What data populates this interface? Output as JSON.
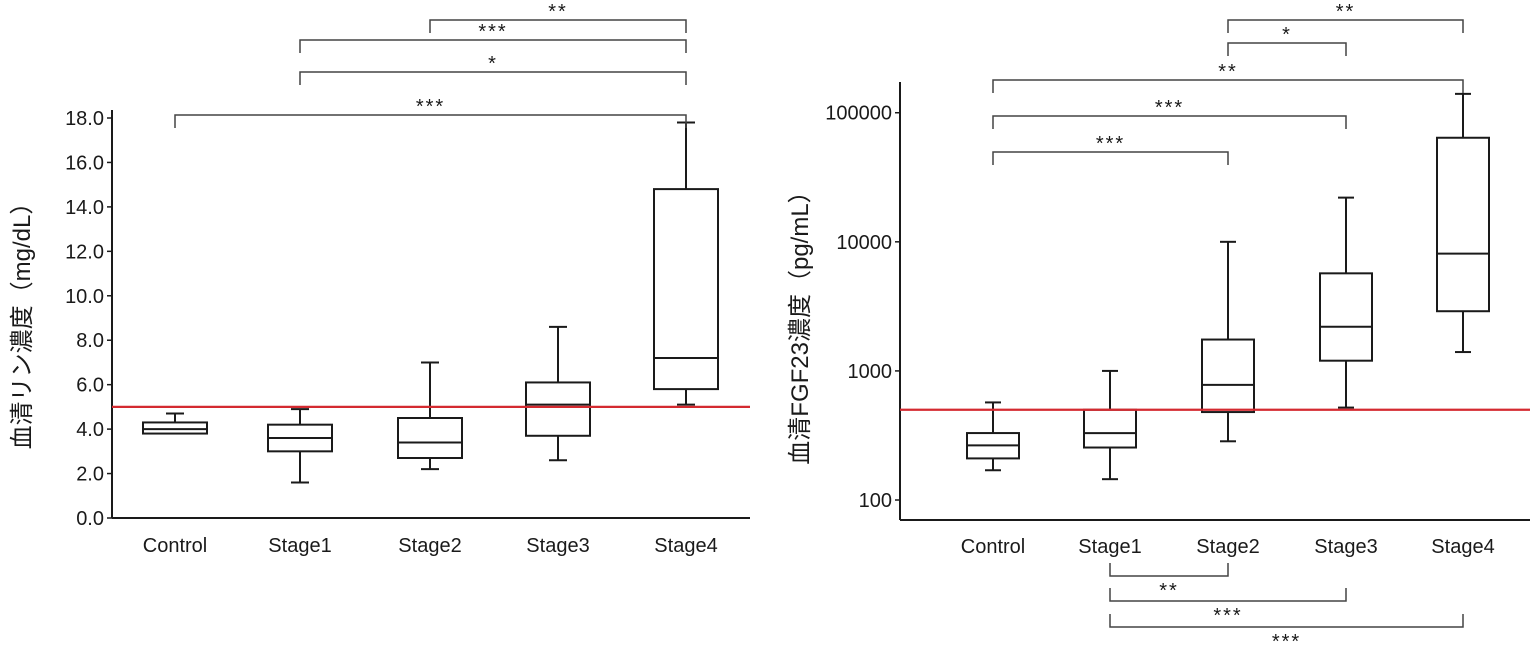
{
  "chart_data": [
    {
      "type": "box",
      "title": "",
      "ylabel": "血清リン濃度（mg/dL）",
      "ylim": [
        0,
        18
      ],
      "yscale": "linear",
      "yticks": [
        {
          "value": 0,
          "label": "0.0"
        },
        {
          "value": 2,
          "label": "2.0"
        },
        {
          "value": 4,
          "label": "4.0"
        },
        {
          "value": 6,
          "label": "6.0"
        },
        {
          "value": 8,
          "label": "8.0"
        },
        {
          "value": 10,
          "label": "10.0"
        },
        {
          "value": 12,
          "label": "12.0"
        },
        {
          "value": 14,
          "label": "14.0"
        },
        {
          "value": 16,
          "label": "16.0"
        },
        {
          "value": 18,
          "label": "18.0"
        }
      ],
      "categories": [
        "Control",
        "Stage1",
        "Stage2",
        "Stage3",
        "Stage4"
      ],
      "boxes": [
        {
          "min": 3.8,
          "q1": 3.8,
          "median": 4.0,
          "q3": 4.3,
          "max": 4.7
        },
        {
          "min": 1.6,
          "q1": 3.0,
          "median": 3.6,
          "q3": 4.2,
          "max": 4.9
        },
        {
          "min": 2.2,
          "q1": 2.7,
          "median": 3.4,
          "q3": 4.5,
          "max": 7.0
        },
        {
          "min": 2.6,
          "q1": 3.7,
          "median": 5.1,
          "q3": 6.1,
          "max": 8.6
        },
        {
          "min": 5.1,
          "q1": 5.8,
          "median": 7.2,
          "q3": 14.8,
          "max": 17.8
        }
      ],
      "reference_line": {
        "value": 5.0,
        "color": "#d42a30"
      },
      "significance_above": [
        {
          "from": "Stage2",
          "to": "Stage4",
          "stars": "**"
        },
        {
          "from": "Stage1",
          "to": "Stage4",
          "stars": "***"
        },
        {
          "from": "Stage1",
          "to": "Stage4",
          "stars": "*"
        },
        {
          "from": "Control",
          "to": "Stage4",
          "stars": "***"
        }
      ],
      "significance_below": []
    },
    {
      "type": "box",
      "title": "",
      "ylabel": "血清FGF23濃度（pg/mL）",
      "ylim": [
        70,
        150000
      ],
      "yscale": "log",
      "yticks": [
        {
          "value": 100,
          "label": "100"
        },
        {
          "value": 1000,
          "label": "1000"
        },
        {
          "value": 10000,
          "label": "10000"
        },
        {
          "value": 100000,
          "label": "100000"
        }
      ],
      "categories": [
        "Control",
        "Stage1",
        "Stage2",
        "Stage3",
        "Stage4"
      ],
      "boxes": [
        {
          "min": 170,
          "q1": 210,
          "median": 265,
          "q3": 330,
          "max": 570
        },
        {
          "min": 145,
          "q1": 255,
          "median": 330,
          "q3": 500,
          "max": 1000
        },
        {
          "min": 285,
          "q1": 480,
          "median": 780,
          "q3": 1750,
          "max": 10000
        },
        {
          "min": 520,
          "q1": 1200,
          "median": 2200,
          "q3": 5700,
          "max": 22000
        },
        {
          "min": 1400,
          "q1": 2900,
          "median": 8100,
          "q3": 64000,
          "max": 140000
        }
      ],
      "reference_line": {
        "value": 500,
        "color": "#d42a30"
      },
      "significance_above": [
        {
          "from": "Stage2",
          "to": "Stage4",
          "stars": "**"
        },
        {
          "from": "Stage2",
          "to": "Stage3",
          "stars": "*"
        },
        {
          "from": "Control",
          "to": "Stage4",
          "stars": "**"
        },
        {
          "from": "Control",
          "to": "Stage3",
          "stars": "***"
        },
        {
          "from": "Control",
          "to": "Stage2",
          "stars": "***"
        }
      ],
      "significance_below": [
        {
          "from": "Stage1",
          "to": "Stage2",
          "stars": "**"
        },
        {
          "from": "Stage1",
          "to": "Stage3",
          "stars": "***"
        },
        {
          "from": "Stage1",
          "to": "Stage4",
          "stars": "***"
        }
      ]
    }
  ]
}
